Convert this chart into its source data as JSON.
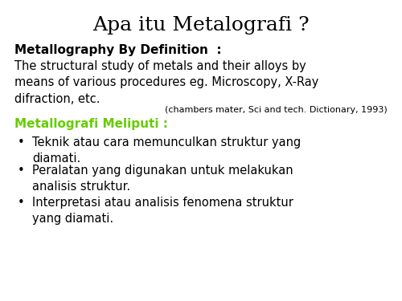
{
  "title": "Apa itu Metalografi ?",
  "title_fontsize": 18,
  "title_color": "#000000",
  "title_font": "serif",
  "background_color": "#ffffff",
  "section1_label": "Metallography By Definition  :",
  "section1_fontsize": 11,
  "section1_color": "#000000",
  "definition_text": "The structural study of metals and their alloys by\nmeans of various procedures eg. Microscopy, X-Ray\ndifraction, etc.",
  "definition_fontsize": 10.5,
  "definition_color": "#000000",
  "definition_font": "Comic Sans MS",
  "citation": "(chambers mater, Sci and tech. Dictionary, 1993)",
  "citation_fontsize": 8,
  "citation_color": "#000000",
  "section2_label": "Metallografi Meliputi :",
  "section2_fontsize": 11,
  "section2_color": "#66cc00",
  "bullets": [
    "Teknik atau cara memunculkan struktur yang\ndiamati.",
    "Peralatan yang digunakan untuk melakukan\nanalisis struktur.",
    "Interpretasi atau analisis fenomena struktur\nyang diamati."
  ],
  "bullet_fontsize": 10.5,
  "bullet_color": "#000000",
  "bullet_char": "•",
  "bullet_font": "Comic Sans MS",
  "section1_font": "Comic Sans MS"
}
